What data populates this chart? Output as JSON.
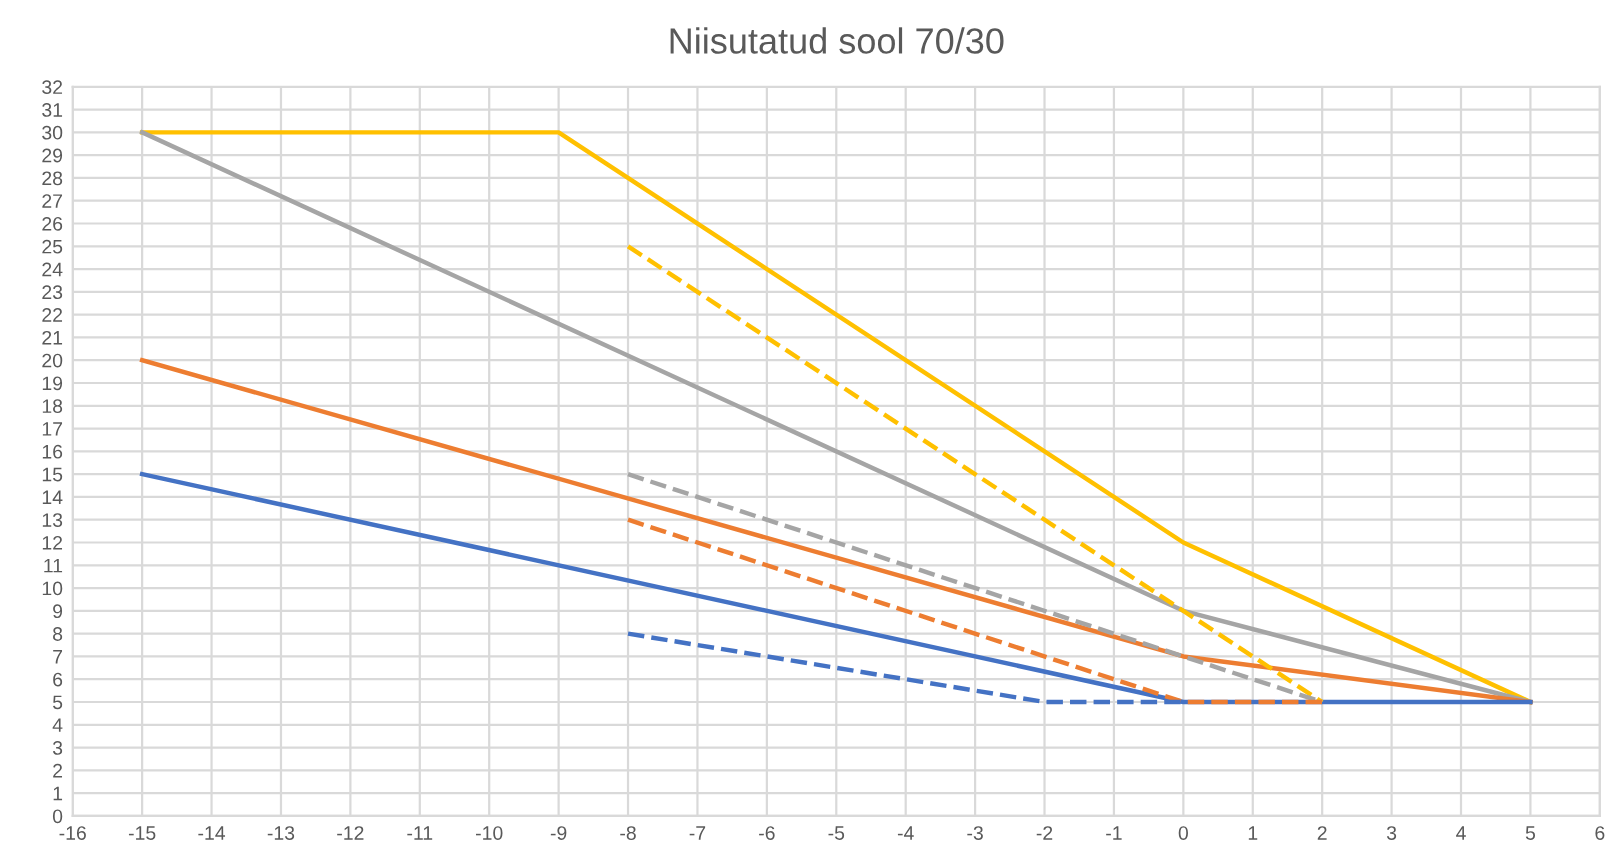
{
  "chart_data": {
    "type": "line",
    "title": "Niisutatud sool 70/30",
    "xlim": [
      -16,
      6
    ],
    "xticks": [
      -16,
      -15,
      -14,
      -13,
      -12,
      -11,
      -10,
      -9,
      -8,
      -7,
      -6,
      -5,
      -4,
      -3,
      -2,
      -1,
      0,
      1,
      2,
      3,
      4,
      5,
      6
    ],
    "ylim": [
      0,
      32
    ],
    "yticks": [
      0,
      1,
      2,
      3,
      4,
      5,
      6,
      7,
      8,
      9,
      10,
      11,
      12,
      13,
      14,
      15,
      16,
      17,
      18,
      19,
      20,
      21,
      22,
      23,
      24,
      25,
      26,
      27,
      28,
      29,
      30,
      31,
      32
    ],
    "grid": true,
    "marker": "none",
    "series": [
      {
        "color": "#ffc000",
        "line_style": "solid",
        "x": [
          -15,
          -9,
          0,
          5
        ],
        "values": [
          30,
          30,
          12,
          5
        ]
      },
      {
        "color": "#a5a5a5",
        "line_style": "solid",
        "x": [
          -15,
          0,
          5
        ],
        "values": [
          30,
          9,
          5
        ]
      },
      {
        "color": "#ed7d31",
        "line_style": "solid",
        "x": [
          -15,
          0,
          5
        ],
        "values": [
          20,
          7,
          5
        ]
      },
      {
        "color": "#4472c4",
        "line_style": "solid",
        "x": [
          -15,
          0,
          5
        ],
        "values": [
          15,
          5,
          5
        ]
      },
      {
        "color": "#ffc000",
        "line_style": "dashed",
        "x": [
          -8,
          2
        ],
        "values": [
          25,
          5
        ]
      },
      {
        "color": "#a5a5a5",
        "line_style": "dashed",
        "x": [
          -8,
          2
        ],
        "values": [
          15,
          5
        ]
      },
      {
        "color": "#ed7d31",
        "line_style": "dashed",
        "x": [
          -8,
          0,
          2
        ],
        "values": [
          13,
          5,
          5
        ]
      },
      {
        "color": "#4472c4",
        "line_style": "dashed",
        "x": [
          -8,
          -2,
          0
        ],
        "values": [
          8,
          5,
          5
        ]
      }
    ]
  }
}
